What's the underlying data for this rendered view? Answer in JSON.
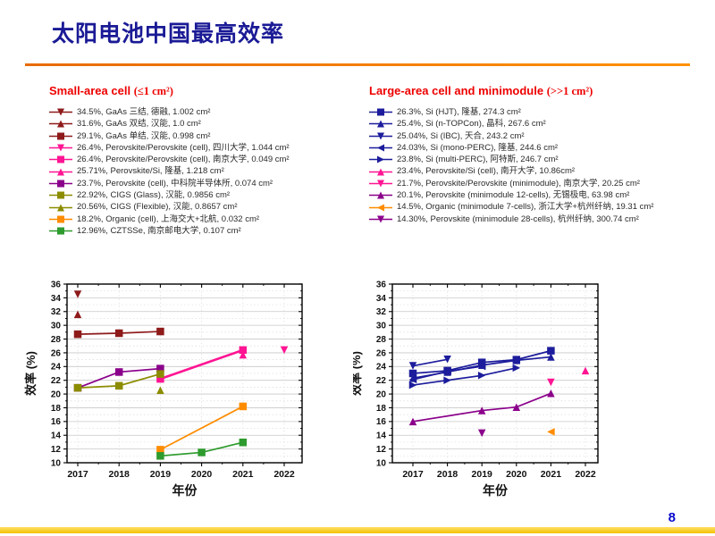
{
  "slide": {
    "title": "太阳电池中国最高效率",
    "page_number": "8"
  },
  "colors": {
    "title_navy": "#1a1a96",
    "legend_red": "#ee0000",
    "dark_red": "#8e1a1a",
    "magenta": "#ff1493",
    "purple": "#8b008b",
    "olive": "#8c8c00",
    "orange": "#ff8c00",
    "green": "#2e9b2e",
    "navy": "#1c1c9c",
    "rule_orange": "#f07800",
    "bottom_gold": "#f2c200"
  },
  "legends": {
    "small_area": {
      "title": "Small-area cell",
      "title_suffix": "(≤1 cm²)",
      "items": [
        {
          "marker": "triangle-down",
          "color": "#8e1a1a",
          "label": "34.5%, GaAs 三结, 德融, 1.002 cm²"
        },
        {
          "marker": "triangle-up",
          "color": "#8e1a1a",
          "label": "31.6%, GaAs 双结, 汉能, 1.0 cm²"
        },
        {
          "marker": "square",
          "color": "#8e1a1a",
          "label": "29.1%, GaAs 单结, 汉能, 0.998 cm²"
        },
        {
          "marker": "triangle-down",
          "color": "#ff1493",
          "label": "26.4%, Perovskite/Perovskite (cell), 四川大学, 1.044 cm²"
        },
        {
          "marker": "square",
          "color": "#ff1493",
          "label": "26.4%, Perovskite/Perovskite (cell), 南京大学, 0.049 cm²"
        },
        {
          "marker": "triangle-up",
          "color": "#ff1493",
          "label": "25.71%, Perovskite/Si, 隆基, 1.218 cm²"
        },
        {
          "marker": "square",
          "color": "#8b008b",
          "label": "23.7%, Perovskite (cell), 中科院半导体所,  0.074 cm²"
        },
        {
          "marker": "square",
          "color": "#8c8c00",
          "label": "22.92%, CIGS (Glass), 汉能, 0.9856 cm²"
        },
        {
          "marker": "triangle-up",
          "color": "#8c8c00",
          "label": "20.56%, CIGS (Flexible), 汉能, 0.8657 cm²"
        },
        {
          "marker": "square",
          "color": "#ff8c00",
          "label": "18.2%, Organic (cell), 上海交大+北航, 0.032 cm²"
        },
        {
          "marker": "square",
          "color": "#2e9b2e",
          "label": "12.96%, CZTSSe, 南京邮电大学, 0.107 cm²"
        }
      ]
    },
    "large_area": {
      "title": "Large-area cell and minimodule",
      "title_suffix": "(>>1 cm²)",
      "items": [
        {
          "marker": "square",
          "color": "#1c1c9c",
          "label": "26.3%, Si (HJT), 隆基, 274.3 cm²"
        },
        {
          "marker": "triangle-up",
          "color": "#1c1c9c",
          "label": "25.4%, Si (n-TOPCon), 晶科, 267.6 cm²"
        },
        {
          "marker": "triangle-down",
          "color": "#1c1c9c",
          "label": "25.04%, Si (IBC), 天合, 243.2 cm²"
        },
        {
          "marker": "triangle-left",
          "color": "#1c1c9c",
          "label": "24.03%, Si (mono-PERC), 隆基, 244.6 cm²"
        },
        {
          "marker": "triangle-right",
          "color": "#1c1c9c",
          "label": "23.8%, Si (multi-PERC), 阿特斯, 246.7 cm²"
        },
        {
          "marker": "triangle-up",
          "color": "#ff1493",
          "label": "23.4%, Perovskite/Si (cell), 南开大学, 10.86cm²"
        },
        {
          "marker": "triangle-down",
          "color": "#ff1493",
          "label": "21.7%, Perovskite/Perovskite (minimodule), 南京大学, 20.25 cm²"
        },
        {
          "marker": "triangle-up",
          "color": "#8b008b",
          "label": "20.1%, Perovskite (minimodule 12-cells), 无锡极电, 63.98 cm²"
        },
        {
          "marker": "triangle-left",
          "color": "#ff8c00",
          "label": "14.5%, Organic (minimodule 7-cells), 浙江大学+杭州纤纳, 19.31 cm²"
        },
        {
          "marker": "triangle-down",
          "color": "#8b008b",
          "label": "14.30%, Perovskite (minimodule 28-cells), 杭州纤纳, 300.74 cm²"
        }
      ]
    }
  },
  "chart_data": [
    {
      "type": "scatter",
      "title": "Small-area cell efficiency records",
      "xlabel": "年份",
      "ylabel": "效率 (%)",
      "xticks": [
        2017,
        2018,
        2019,
        2020,
        2021,
        2022
      ],
      "ylim": [
        10,
        36
      ],
      "ytick_step": 2,
      "grid": true,
      "legend_position": "above",
      "series": [
        {
          "name": "GaAs 三结 (德融)",
          "marker": "triangle-down",
          "color": "#8e1a1a",
          "points": [
            [
              2017,
              34.5
            ]
          ]
        },
        {
          "name": "GaAs 双结 (汉能)",
          "marker": "triangle-up",
          "color": "#8e1a1a",
          "points": [
            [
              2017,
              31.6
            ]
          ]
        },
        {
          "name": "GaAs 单结 (汉能)",
          "marker": "square",
          "color": "#8e1a1a",
          "points": [
            [
              2017,
              28.7
            ],
            [
              2018,
              28.85
            ],
            [
              2019,
              29.1
            ]
          ]
        },
        {
          "name": "Perovskite/Perovskite 四川大学",
          "marker": "triangle-down",
          "color": "#ff1493",
          "points": [
            [
              2022,
              26.4
            ]
          ]
        },
        {
          "name": "Perovskite/Perovskite 南京大学",
          "marker": "square",
          "color": "#ff1493",
          "lw": 2.6,
          "points": [
            [
              2019,
              22.2
            ],
            [
              2021,
              26.4
            ]
          ]
        },
        {
          "name": "Perovskite/Si 隆基",
          "marker": "triangle-up",
          "color": "#ff1493",
          "points": [
            [
              2021,
              25.71
            ]
          ]
        },
        {
          "name": "Perovskite (cell) 中科院半导体所",
          "marker": "square",
          "color": "#8b008b",
          "points": [
            [
              2017,
              20.9
            ],
            [
              2018,
              23.2
            ],
            [
              2019,
              23.7
            ]
          ]
        },
        {
          "name": "CIGS (Glass) 汉能",
          "marker": "square",
          "color": "#8c8c00",
          "points": [
            [
              2017,
              20.9
            ],
            [
              2018,
              21.2
            ],
            [
              2019,
              22.92
            ]
          ]
        },
        {
          "name": "CIGS (Flexible) 汉能",
          "marker": "triangle-up",
          "color": "#8c8c00",
          "points": [
            [
              2019,
              20.56
            ]
          ]
        },
        {
          "name": "Organic (cell) 上海交大+北航",
          "marker": "square",
          "color": "#ff8c00",
          "points": [
            [
              2019,
              11.9
            ],
            [
              2021,
              18.2
            ]
          ]
        },
        {
          "name": "CZTSSe 南京邮电大学",
          "marker": "square",
          "color": "#2e9b2e",
          "points": [
            [
              2019,
              11.0
            ],
            [
              2020,
              11.5
            ],
            [
              2021,
              12.96
            ]
          ]
        }
      ]
    },
    {
      "type": "scatter",
      "title": "Large-area cell and minimodule efficiency records",
      "xlabel": "年份",
      "ylabel": "效率 (%)",
      "xticks": [
        2017,
        2018,
        2019,
        2020,
        2021,
        2022
      ],
      "ylim": [
        10,
        36
      ],
      "ytick_step": 2,
      "grid": true,
      "legend_position": "above",
      "series": [
        {
          "name": "Si (HJT) 隆基",
          "marker": "square",
          "color": "#1c1c9c",
          "points": [
            [
              2017,
              23.0
            ],
            [
              2018,
              23.4
            ],
            [
              2019,
              24.6
            ],
            [
              2020,
              25.0
            ],
            [
              2021,
              26.3
            ]
          ]
        },
        {
          "name": "Si (n-TOPCon) 晶科",
          "marker": "triangle-up",
          "color": "#1c1c9c",
          "points": [
            [
              2017,
              22.3
            ],
            [
              2018,
              23.2
            ],
            [
              2019,
              24.2
            ],
            [
              2020,
              24.9
            ],
            [
              2021,
              25.4
            ]
          ]
        },
        {
          "name": "Si (IBC) 天合",
          "marker": "triangle-down",
          "color": "#1c1c9c",
          "points": [
            [
              2017,
              24.1
            ],
            [
              2018,
              25.04
            ]
          ]
        },
        {
          "name": "Si (mono-PERC) 隆基",
          "marker": "triangle-left",
          "color": "#1c1c9c",
          "points": [
            [
              2017,
              22.1
            ],
            [
              2018,
              23.3
            ],
            [
              2019,
              24.03
            ]
          ]
        },
        {
          "name": "Si (multi-PERC) 阿特斯",
          "marker": "triangle-right",
          "color": "#1c1c9c",
          "points": [
            [
              2017,
              21.3
            ],
            [
              2018,
              22.0
            ],
            [
              2019,
              22.7
            ],
            [
              2020,
              23.8
            ]
          ]
        },
        {
          "name": "Perovskite/Si (cell) 南开大学",
          "marker": "triangle-up",
          "color": "#ff1493",
          "points": [
            [
              2022,
              23.4
            ]
          ]
        },
        {
          "name": "Perovskite/Perovskite 南京大学",
          "marker": "triangle-down",
          "color": "#ff1493",
          "points": [
            [
              2021,
              21.7
            ]
          ]
        },
        {
          "name": "Perovskite minimodule 无锡极电",
          "marker": "triangle-up",
          "color": "#8b008b",
          "points": [
            [
              2017,
              16.0
            ],
            [
              2019,
              17.6
            ],
            [
              2020,
              18.1
            ],
            [
              2021,
              20.1
            ]
          ]
        },
        {
          "name": "Organic minimodule 浙大+杭州纤纳",
          "marker": "triangle-left",
          "color": "#ff8c00",
          "points": [
            [
              2021,
              14.5
            ]
          ]
        },
        {
          "name": "Perovskite minimodule 杭州纤纳",
          "marker": "triangle-down",
          "color": "#8b008b",
          "points": [
            [
              2019,
              14.3
            ]
          ]
        }
      ]
    }
  ]
}
